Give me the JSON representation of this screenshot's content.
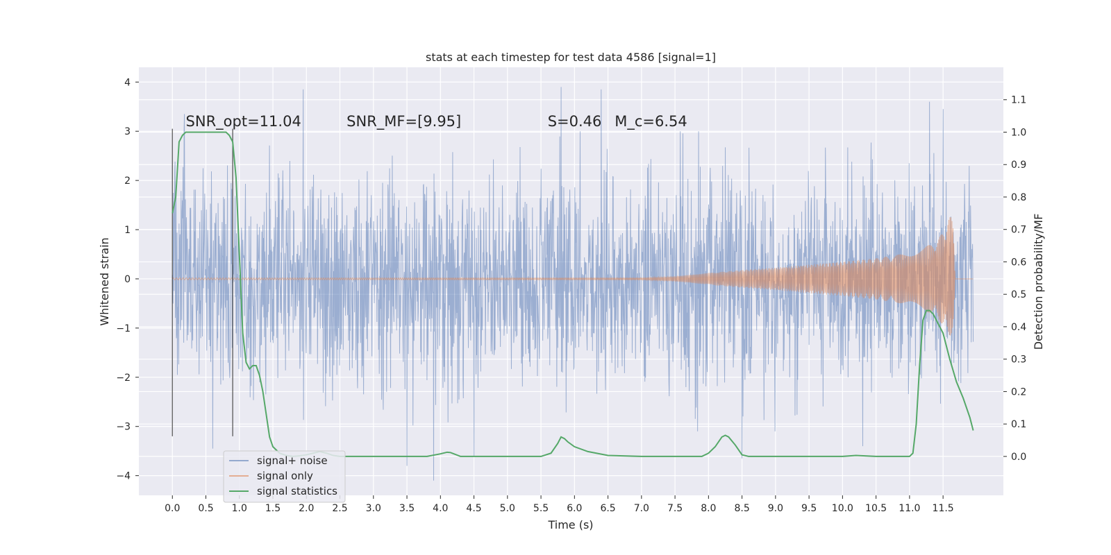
{
  "chart_data": {
    "type": "line",
    "title": "stats at each timestep for test data 4586 [signal=1]",
    "xlabel": "Time (s)",
    "ylabel": "Whitened strain",
    "y2label": "Detection probability/MF",
    "xlim": [
      -0.5,
      12.4
    ],
    "ylim": [
      -4.4,
      4.3
    ],
    "y2lim": [
      -0.12,
      1.2
    ],
    "x_ticks": [
      0.0,
      0.5,
      1.0,
      1.5,
      2.0,
      2.5,
      3.0,
      3.5,
      4.0,
      4.5,
      5.0,
      5.5,
      6.0,
      6.5,
      7.0,
      7.5,
      8.0,
      8.5,
      9.0,
      9.5,
      10.0,
      10.5,
      11.0,
      11.5
    ],
    "x_tick_labels": [
      "0.0",
      "0.5",
      "1.0",
      "1.5",
      "2.0",
      "2.5",
      "3.0",
      "3.5",
      "4.0",
      "4.5",
      "5.0",
      "5.5",
      "6.0",
      "6.5",
      "7.0",
      "7.5",
      "8.0",
      "8.5",
      "9.0",
      "9.5",
      "10.0",
      "10.5",
      "11.0",
      "11.5"
    ],
    "y_ticks": [
      -4,
      -3,
      -2,
      -1,
      0,
      1,
      2,
      3,
      4
    ],
    "y_tick_labels": [
      "−4",
      "−3",
      "−2",
      "−1",
      "0",
      "1",
      "2",
      "3",
      "4"
    ],
    "y2_ticks": [
      0.0,
      0.1,
      0.2,
      0.3,
      0.4,
      0.5,
      0.6,
      0.7,
      0.8,
      0.9,
      1.0,
      1.1
    ],
    "y2_tick_labels": [
      "0.0",
      "0.1",
      "0.2",
      "0.3",
      "0.4",
      "0.5",
      "0.6",
      "0.7",
      "0.8",
      "0.9",
      "1.0",
      "1.1"
    ],
    "grid": true,
    "legend_position": "lower-left",
    "annotations": [
      {
        "text": "SNR_opt=11.04",
        "x": 0.2,
        "y": 3.1
      },
      {
        "text": "SNR_MF=[9.95]",
        "x": 2.6,
        "y": 3.1
      },
      {
        "text": "S=0.46",
        "x": 5.6,
        "y": 3.1
      },
      {
        "text": "M_c=6.54",
        "x": 6.6,
        "y": 3.1
      }
    ],
    "vlines": [
      {
        "x": 0.0,
        "ymin": -3.2,
        "ymax": 3.05
      },
      {
        "x": 0.9,
        "ymin": -3.2,
        "ymax": 3.05
      }
    ],
    "series": [
      {
        "name": "signal+ noise",
        "color": "#4c72b0",
        "axis": "left",
        "x_range": [
          0.0,
          11.95
        ],
        "envelope_typical": [
          -1.8,
          1.8
        ],
        "extremes": [
          [
            0.18,
            3.35
          ],
          [
            0.6,
            -3.45
          ],
          [
            1.95,
            3.85
          ],
          [
            3.5,
            -3.8
          ],
          [
            3.9,
            -4.1
          ],
          [
            4.5,
            -3.6
          ],
          [
            5.8,
            3.9
          ],
          [
            6.4,
            3.85
          ],
          [
            8.5,
            -3.65
          ],
          [
            10.3,
            -3.4
          ],
          [
            11.3,
            3.6
          ],
          [
            11.5,
            3.45
          ]
        ]
      },
      {
        "name": "signal only",
        "color": "#dd8452",
        "axis": "left",
        "x": [
          0.0,
          7.0,
          7.5,
          8.0,
          8.5,
          9.0,
          9.5,
          10.0,
          10.5,
          11.0,
          11.2,
          11.4,
          11.5,
          11.6,
          11.65,
          11.68
        ],
        "upper": [
          0.02,
          0.02,
          0.05,
          0.12,
          0.18,
          0.23,
          0.29,
          0.35,
          0.42,
          0.53,
          0.62,
          0.78,
          0.95,
          1.25,
          1.4,
          0.0
        ],
        "lower": [
          -0.02,
          -0.02,
          -0.05,
          -0.12,
          -0.18,
          -0.23,
          -0.29,
          -0.35,
          -0.42,
          -0.53,
          -0.62,
          -0.78,
          -0.95,
          -1.15,
          -1.25,
          0.0
        ]
      },
      {
        "name": "signal statistics",
        "color": "#55a868",
        "axis": "right",
        "x": [
          0.0,
          0.05,
          0.1,
          0.15,
          0.2,
          0.3,
          0.4,
          0.5,
          0.6,
          0.7,
          0.8,
          0.85,
          0.9,
          0.95,
          1.0,
          1.05,
          1.1,
          1.15,
          1.2,
          1.25,
          1.3,
          1.35,
          1.4,
          1.45,
          1.5,
          1.6,
          1.7,
          1.8,
          1.9,
          2.0,
          2.1,
          2.2,
          2.3,
          2.4,
          2.5,
          2.7,
          3.0,
          3.5,
          3.8,
          4.0,
          4.1,
          4.15,
          4.2,
          4.3,
          4.5,
          5.0,
          5.5,
          5.65,
          5.75,
          5.8,
          5.85,
          5.9,
          6.0,
          6.2,
          6.5,
          7.0,
          7.5,
          7.9,
          8.0,
          8.1,
          8.2,
          8.25,
          8.3,
          8.4,
          8.5,
          8.6,
          9.0,
          9.5,
          10.0,
          10.2,
          10.5,
          11.0,
          11.05,
          11.1,
          11.15,
          11.2,
          11.25,
          11.3,
          11.35,
          11.4,
          11.5,
          11.6,
          11.7,
          11.8,
          11.9,
          11.95
        ],
        "values": [
          0.75,
          0.8,
          0.97,
          0.99,
          1.0,
          1.0,
          1.0,
          1.0,
          1.0,
          1.0,
          1.0,
          0.99,
          0.97,
          0.86,
          0.62,
          0.38,
          0.29,
          0.27,
          0.28,
          0.28,
          0.25,
          0.2,
          0.13,
          0.06,
          0.03,
          0.01,
          0.003,
          0.0,
          0.002,
          0.005,
          0.01,
          0.015,
          0.01,
          0.003,
          0.0,
          0.0,
          0.0,
          0.0,
          0.0,
          0.008,
          0.013,
          0.012,
          0.008,
          0.0,
          0.0,
          0.0,
          0.0,
          0.01,
          0.04,
          0.06,
          0.055,
          0.045,
          0.03,
          0.015,
          0.003,
          0.0,
          0.0,
          0.0,
          0.01,
          0.03,
          0.06,
          0.065,
          0.06,
          0.035,
          0.005,
          0.0,
          0.0,
          0.0,
          0.0,
          0.003,
          0.0,
          0.0,
          0.01,
          0.1,
          0.28,
          0.42,
          0.45,
          0.45,
          0.44,
          0.42,
          0.38,
          0.3,
          0.23,
          0.18,
          0.12,
          0.08
        ]
      }
    ]
  }
}
